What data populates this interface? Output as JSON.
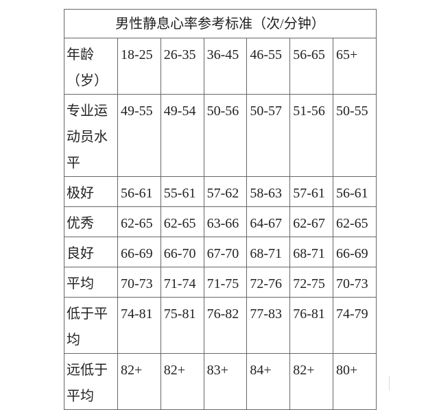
{
  "table": {
    "title": "男性静息心率参考标准（次/分钟）",
    "header": {
      "label": "年龄（岁）",
      "ages": [
        "18-25",
        "26-35",
        "36-45",
        "46-55",
        "56-65",
        "65+"
      ]
    },
    "rows": [
      {
        "label": "专业运动员水平",
        "values": [
          "49-55",
          "49-54",
          "50-56",
          "50-57",
          "51-56",
          "50-55"
        ]
      },
      {
        "label": "极好",
        "values": [
          "56-61",
          "55-61",
          "57-62",
          "58-63",
          "57-61",
          "56-61"
        ]
      },
      {
        "label": "优秀",
        "values": [
          "62-65",
          "62-65",
          "63-66",
          "64-67",
          "62-67",
          "62-65"
        ]
      },
      {
        "label": "良好",
        "values": [
          "66-69",
          "66-70",
          "67-70",
          "68-71",
          "68-71",
          "66-69"
        ]
      },
      {
        "label": "平均",
        "values": [
          "70-73",
          "71-74",
          "71-75",
          "72-76",
          "72-75",
          "70-73"
        ]
      },
      {
        "label": "低于平均",
        "values": [
          "74-81",
          "75-81",
          "76-82",
          "77-83",
          "76-81",
          "74-79"
        ]
      },
      {
        "label": "远低于平均",
        "values": [
          "82+",
          "82+",
          "83+",
          "84+",
          "82+",
          "80+"
        ]
      }
    ]
  }
}
